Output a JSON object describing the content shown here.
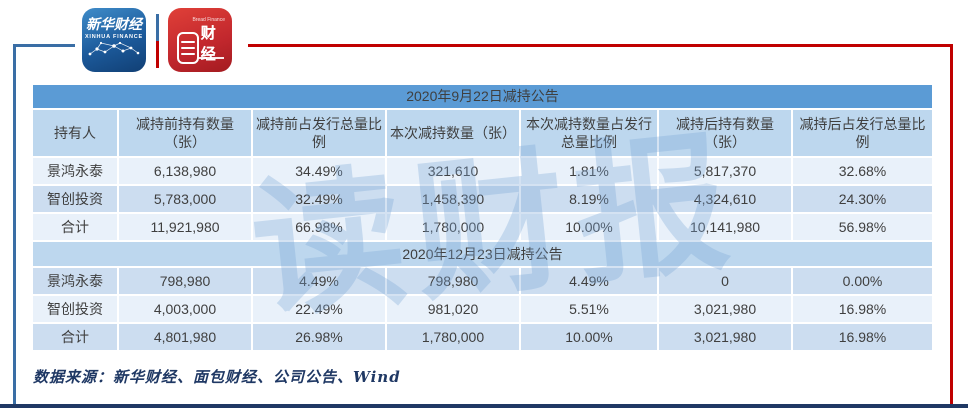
{
  "branding": {
    "xinhua": {
      "name": "新华财经",
      "latin": "XINHUA FINANCE"
    },
    "bread": {
      "name": "面包财经",
      "latin": "Bread Finance",
      "display_suffix": "财经"
    }
  },
  "watermark": "读财报",
  "colors": {
    "title_bar": "#5b9bd5",
    "header_bg": "#bdd7ee",
    "row_light": "#e9f1fa",
    "row_dark": "#ccddf0",
    "cell_text": "#3f3f3f",
    "frame_blue": "#3a6ea5",
    "frame_red": "#c00000",
    "bottom_bar": "#1f3864",
    "watermark": "#7ba7d7"
  },
  "chart_data": [
    {
      "type": "table",
      "title": "2020年9月22日减持公告",
      "columns": [
        "持有人",
        "减持前持有数量（张）",
        "减持前占发行总量比例",
        "本次减持数量（张）",
        "本次减持数量占发行总量比例",
        "减持后持有数量（张）",
        "减持后占发行总量比例"
      ],
      "rows": [
        [
          "景鸿永泰",
          "6,138,980",
          "34.49%",
          "321,610",
          "1.81%",
          "5,817,370",
          "32.68%"
        ],
        [
          "智创投资",
          "5,783,000",
          "32.49%",
          "1,458,390",
          "8.19%",
          "4,324,610",
          "24.30%"
        ],
        [
          "合计",
          "11,921,980",
          "66.98%",
          "1,780,000",
          "10.00%",
          "10,141,980",
          "56.98%"
        ]
      ]
    },
    {
      "type": "table",
      "title": "2020年12月23日减持公告",
      "rows": [
        [
          "景鸿永泰",
          "798,980",
          "4.49%",
          "798,980",
          "4.49%",
          "0",
          "0.00%"
        ],
        [
          "智创投资",
          "4,003,000",
          "22.49%",
          "981,020",
          "5.51%",
          "3,021,980",
          "16.98%"
        ],
        [
          "合计",
          "4,801,980",
          "26.98%",
          "1,780,000",
          "10.00%",
          "3,021,980",
          "16.98%"
        ]
      ]
    }
  ],
  "footer": {
    "source": "数据来源：新华财经、面包财经、公司公告、Wind"
  }
}
